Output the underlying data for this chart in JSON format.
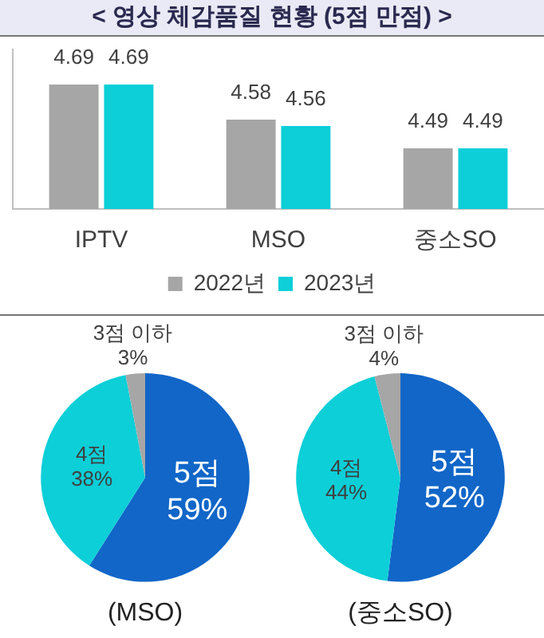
{
  "chart_data": [
    {
      "type": "bar",
      "title": "< 영상 체감품질 현황 (5점 만점) >",
      "categories": [
        "IPTV",
        "MSO",
        "중소SO"
      ],
      "series": [
        {
          "name": "2022년",
          "color": "#a6a6a6",
          "values": [
            4.69,
            4.58,
            4.49
          ]
        },
        {
          "name": "2023년",
          "color": "#0ccfd8",
          "values": [
            4.69,
            4.56,
            4.49
          ]
        }
      ],
      "ylim": [
        4.3,
        4.8
      ],
      "tick_labels": "x",
      "data_labels": true,
      "grid": false,
      "legend": "bottom"
    },
    {
      "type": "pie",
      "title": "(MSO)",
      "categories": [
        "5점",
        "4점",
        "3점 이하"
      ],
      "values": [
        59,
        38,
        3
      ],
      "colors": [
        "#1166c8",
        "#0ccfd8",
        "#a6a6a6"
      ],
      "value_labels": [
        "59%",
        "38%",
        "3%"
      ],
      "legend": false
    },
    {
      "type": "pie",
      "title": "(중소SO)",
      "categories": [
        "5점",
        "4점",
        "3점 이하"
      ],
      "values": [
        52,
        44,
        4
      ],
      "colors": [
        "#1166c8",
        "#0ccfd8",
        "#a6a6a6"
      ],
      "value_labels": [
        "52%",
        "44%",
        "4%"
      ],
      "legend": false
    }
  ]
}
